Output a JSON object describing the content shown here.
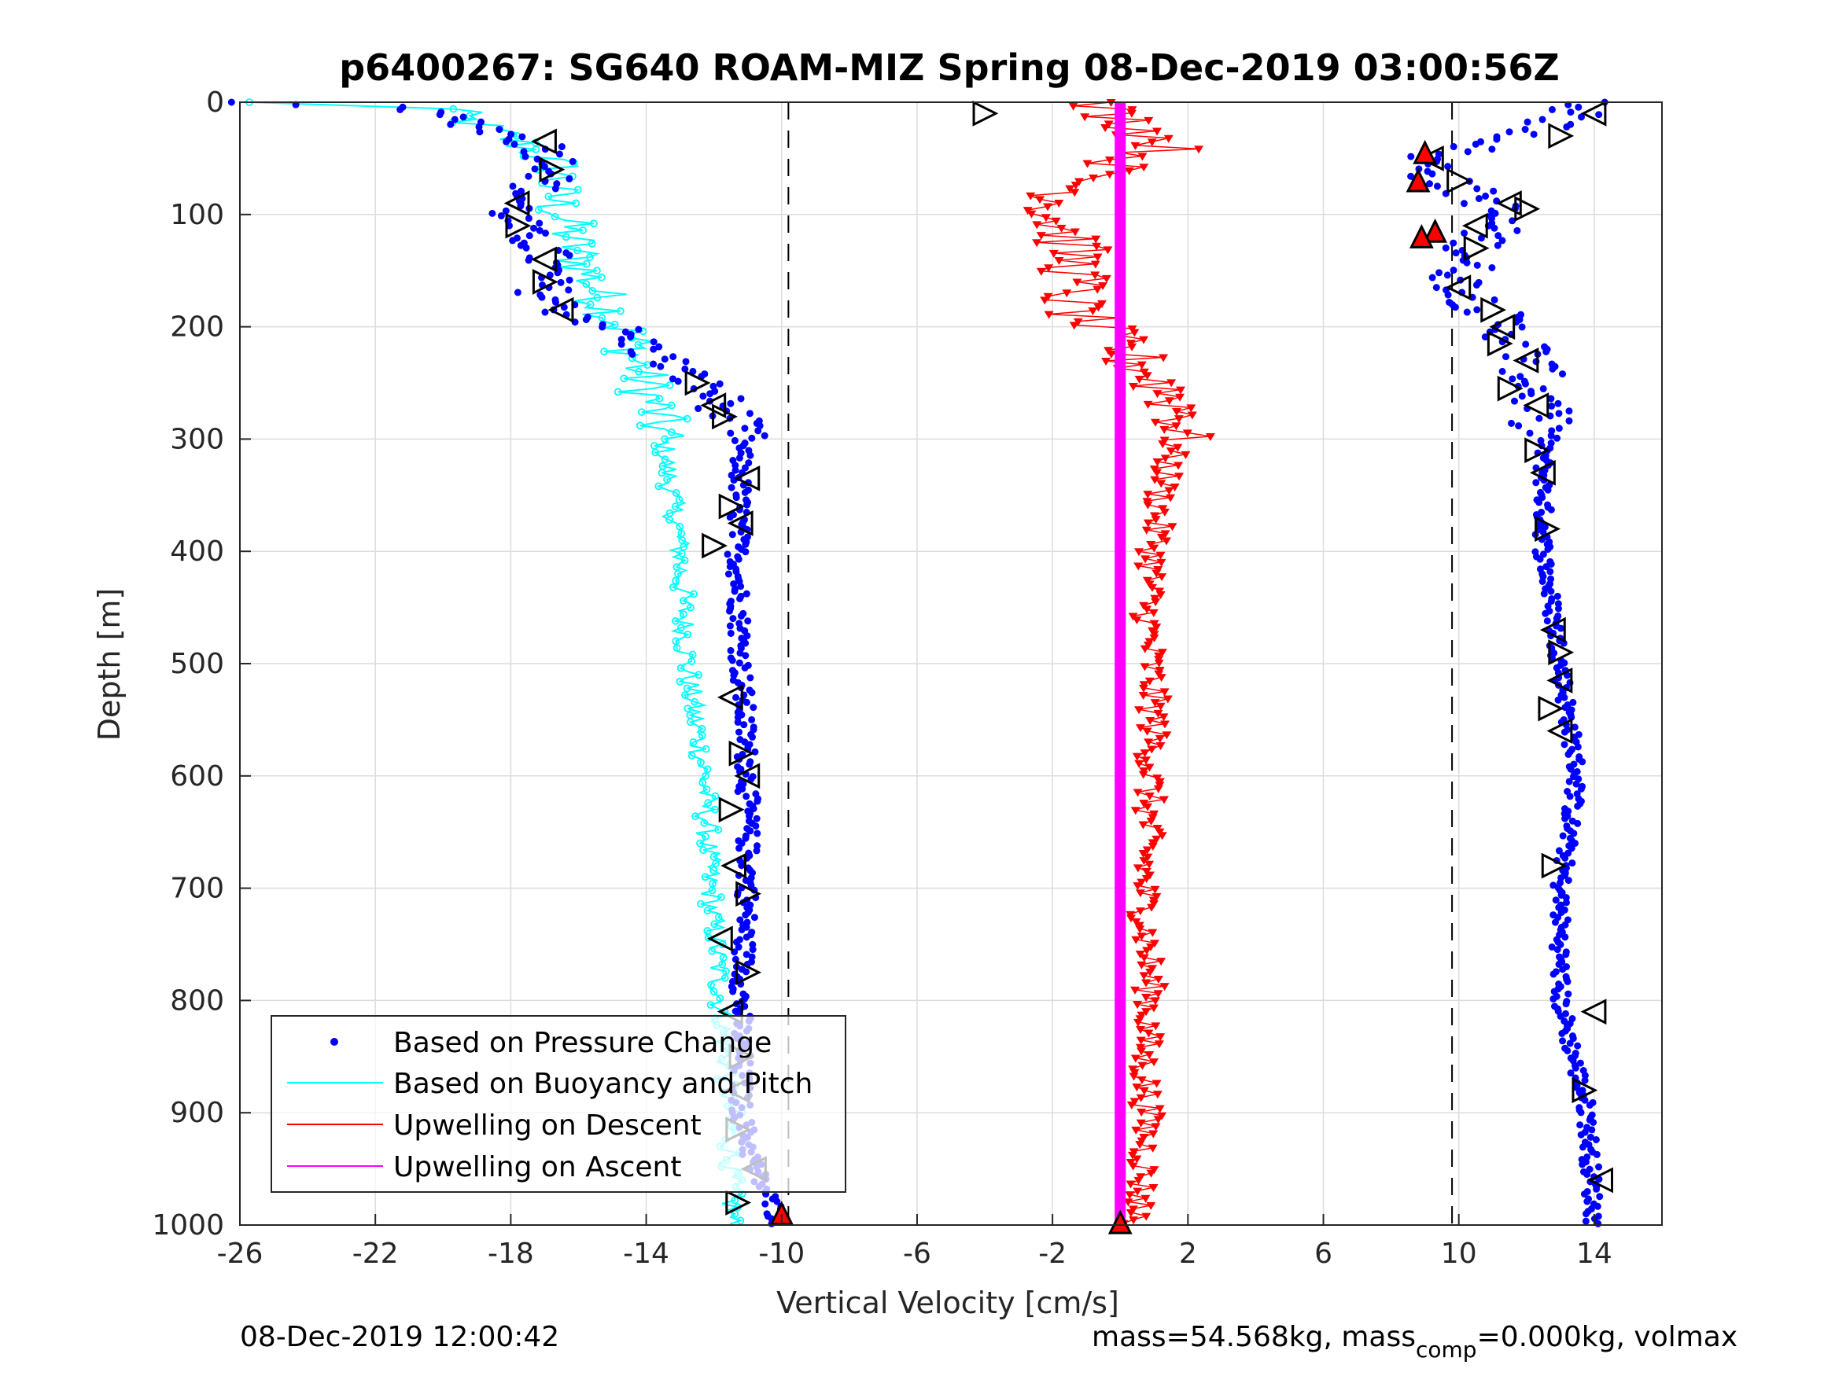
{
  "chart_data": {
    "type": "scatter",
    "title": "p6400267: SG640 ROAM-MIZ Spring 08-Dec-2019 03:00:56Z",
    "xlabel": "Vertical Velocity [cm/s]",
    "ylabel": "Depth [m]",
    "xlim": [
      -26,
      16
    ],
    "ylim": [
      0,
      1000
    ],
    "y_reversed": true,
    "x_ticks": [
      "-26",
      "-22",
      "-18",
      "-14",
      "-10",
      "-6",
      "-2",
      "2",
      "6",
      "10",
      "14"
    ],
    "x_tick_values": [
      -26,
      -22,
      -18,
      -14,
      -10,
      -6,
      -2,
      2,
      6,
      10,
      14
    ],
    "y_ticks": [
      "0",
      "100",
      "200",
      "300",
      "400",
      "500",
      "600",
      "700",
      "800",
      "900",
      "1000"
    ],
    "y_tick_values": [
      0,
      100,
      200,
      300,
      400,
      500,
      600,
      700,
      800,
      900,
      1000
    ],
    "grid": true,
    "legend_position": "bottom-left",
    "reference_lines_x": [
      -9.8,
      9.8
    ],
    "colors": {
      "pressure": "#0000ff",
      "buoyancy": "#00ffff",
      "descent": "#ff0000",
      "ascent": "#ff00ff",
      "marker_fill": "#ff0000"
    },
    "series": [
      {
        "name": "Based on Pressure Change",
        "style": "dots",
        "descent_profile": [
          [
            0,
            -25.5
          ],
          [
            5,
            -21.5
          ],
          [
            15,
            -19.5
          ],
          [
            25,
            -18.5
          ],
          [
            40,
            -17
          ],
          [
            60,
            -16.5
          ],
          [
            80,
            -17.5
          ],
          [
            100,
            -18
          ],
          [
            115,
            -17.8
          ],
          [
            130,
            -17
          ],
          [
            150,
            -17
          ],
          [
            170,
            -17
          ],
          [
            185,
            -16.5
          ],
          [
            200,
            -15
          ],
          [
            220,
            -14
          ],
          [
            240,
            -13
          ],
          [
            260,
            -12
          ],
          [
            280,
            -11.5
          ],
          [
            300,
            -11.2
          ],
          [
            400,
            -11.3
          ],
          [
            500,
            -11.2
          ],
          [
            600,
            -11
          ],
          [
            700,
            -11
          ],
          [
            800,
            -11.2
          ],
          [
            900,
            -11.2
          ],
          [
            950,
            -10.8
          ],
          [
            1000,
            -10
          ]
        ],
        "ascent_profile": [
          [
            0,
            14
          ],
          [
            30,
            12
          ],
          [
            50,
            9
          ],
          [
            70,
            9.5
          ],
          [
            90,
            11
          ],
          [
            110,
            11
          ],
          [
            130,
            10.5
          ],
          [
            160,
            10
          ],
          [
            190,
            11
          ],
          [
            220,
            12
          ],
          [
            260,
            12.3
          ],
          [
            300,
            12.5
          ],
          [
            400,
            12.5
          ],
          [
            500,
            13
          ],
          [
            600,
            13.5
          ],
          [
            700,
            13
          ],
          [
            800,
            13
          ],
          [
            900,
            13.8
          ],
          [
            1000,
            14
          ]
        ]
      },
      {
        "name": "Based on Buoyancy and Pitch",
        "style": "line",
        "profile": [
          [
            0,
            -26
          ],
          [
            5,
            -20
          ],
          [
            20,
            -19
          ],
          [
            40,
            -17.5
          ],
          [
            60,
            -16.5
          ],
          [
            80,
            -16.8
          ],
          [
            100,
            -16.5
          ],
          [
            140,
            -16
          ],
          [
            180,
            -15.2
          ],
          [
            210,
            -14.5
          ],
          [
            240,
            -14.2
          ],
          [
            270,
            -13.8
          ],
          [
            300,
            -13.5
          ],
          [
            400,
            -13
          ],
          [
            500,
            -12.8
          ],
          [
            600,
            -12.3
          ],
          [
            700,
            -12.1
          ],
          [
            800,
            -11.8
          ],
          [
            900,
            -11.5
          ],
          [
            950,
            -11.5
          ],
          [
            1000,
            -11.5
          ]
        ]
      },
      {
        "name": "Upwelling on Descent",
        "style": "triangles",
        "profile": [
          [
            0,
            -1
          ],
          [
            20,
            0.5
          ],
          [
            40,
            1.5
          ],
          [
            60,
            -0.5
          ],
          [
            80,
            -1.5
          ],
          [
            100,
            -2
          ],
          [
            120,
            -1.5
          ],
          [
            150,
            -1.3
          ],
          [
            180,
            -1.5
          ],
          [
            200,
            -0.8
          ],
          [
            220,
            0
          ],
          [
            240,
            0.8
          ],
          [
            260,
            1.5
          ],
          [
            280,
            2
          ],
          [
            300,
            1.6
          ],
          [
            350,
            1.2
          ],
          [
            400,
            1
          ],
          [
            450,
            0.8
          ],
          [
            500,
            0.9
          ],
          [
            550,
            1
          ],
          [
            600,
            0.9
          ],
          [
            650,
            0.8
          ],
          [
            700,
            0.7
          ],
          [
            750,
            0.8
          ],
          [
            800,
            0.9
          ],
          [
            850,
            0.7
          ],
          [
            900,
            0.8
          ],
          [
            950,
            0.7
          ],
          [
            1000,
            0.5
          ]
        ]
      },
      {
        "name": "Upwelling on Ascent",
        "style": "thick-line",
        "profile": [
          [
            0,
            0
          ],
          [
            1000,
            0
          ]
        ]
      }
    ],
    "open_triangle_markers": [
      [
        10,
        -4
      ],
      [
        35,
        -17
      ],
      [
        60,
        -16.8
      ],
      [
        90,
        -17.8
      ],
      [
        110,
        -17.8
      ],
      [
        140,
        -17
      ],
      [
        160,
        -17
      ],
      [
        185,
        -16.5
      ],
      [
        250,
        -12.5
      ],
      [
        270,
        -12
      ],
      [
        280,
        -11.7
      ],
      [
        335,
        -11
      ],
      [
        360,
        -11.5
      ],
      [
        375,
        -11.2
      ],
      [
        395,
        -12
      ],
      [
        530,
        -11.5
      ],
      [
        580,
        -11.2
      ],
      [
        600,
        -11
      ],
      [
        630,
        -11.5
      ],
      [
        680,
        -11.4
      ],
      [
        705,
        -11
      ],
      [
        745,
        -11.8
      ],
      [
        775,
        -11
      ],
      [
        810,
        -11.5
      ],
      [
        850,
        -11.2
      ],
      [
        880,
        -11.3
      ],
      [
        915,
        -11.3
      ],
      [
        950,
        -10.8
      ],
      [
        980,
        -11.3
      ],
      [
        10,
        14
      ],
      [
        30,
        13
      ],
      [
        50,
        9.2
      ],
      [
        70,
        10
      ],
      [
        90,
        11.5
      ],
      [
        95,
        12
      ],
      [
        110,
        10.5
      ],
      [
        130,
        10.5
      ],
      [
        165,
        10
      ],
      [
        185,
        11
      ],
      [
        200,
        11.3
      ],
      [
        215,
        11.2
      ],
      [
        230,
        12
      ],
      [
        255,
        11.5
      ],
      [
        270,
        12.3
      ],
      [
        310,
        12.3
      ],
      [
        330,
        12.5
      ],
      [
        380,
        12.6
      ],
      [
        470,
        12.8
      ],
      [
        490,
        13
      ],
      [
        515,
        13
      ],
      [
        540,
        12.7
      ],
      [
        560,
        13
      ],
      [
        680,
        12.8
      ],
      [
        810,
        14
      ],
      [
        880,
        13.7
      ],
      [
        960,
        14.2
      ]
    ],
    "filled_triangle_markers": [
      [
        45,
        9
      ],
      [
        70,
        8.8
      ],
      [
        115,
        9.3
      ],
      [
        120,
        8.9
      ],
      [
        990,
        -10
      ],
      [
        998,
        0
      ]
    ]
  },
  "legend": {
    "items": [
      {
        "label": "Based on Pressure Change",
        "color": "#0000ff",
        "style": "dot"
      },
      {
        "label": "Based on Buoyancy and Pitch",
        "color": "#00ffff",
        "style": "line"
      },
      {
        "label": "Upwelling on Descent",
        "color": "#ff0000",
        "style": "line"
      },
      {
        "label": "Upwelling on Ascent",
        "color": "#ff00ff",
        "style": "line"
      }
    ]
  },
  "footer": {
    "timestamp": "08-Dec-2019 12:00:42",
    "mass_text_a": "mass=54.568kg, mass",
    "mass_sub": "comp",
    "mass_text_b": "=0.000kg, volmax"
  }
}
